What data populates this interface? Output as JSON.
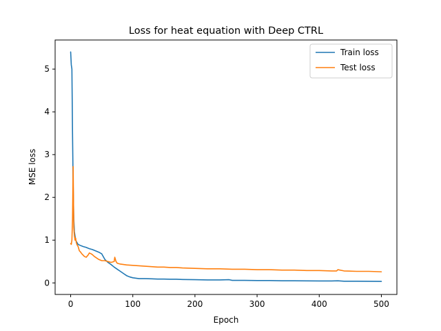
{
  "chart_data": {
    "type": "line",
    "title": "Loss for heat equation with Deep CTRL",
    "xlabel": "Epoch",
    "ylabel": "MSE loss",
    "xlim": [
      -25,
      525
    ],
    "ylim": [
      -0.27,
      5.68
    ],
    "xticks": [
      0,
      100,
      200,
      300,
      400,
      500
    ],
    "yticks": [
      0,
      1,
      2,
      3,
      4,
      5
    ],
    "grid": false,
    "legend_position": "top-right",
    "series": [
      {
        "name": "Train loss",
        "color": "#1f77b4",
        "x": [
          0,
          1,
          2,
          3,
          4,
          5,
          6,
          8,
          10,
          12,
          15,
          20,
          25,
          30,
          35,
          40,
          45,
          50,
          55,
          60,
          65,
          70,
          75,
          80,
          85,
          90,
          95,
          100,
          105,
          110,
          120,
          130,
          140,
          150,
          160,
          170,
          180,
          200,
          220,
          240,
          255,
          260,
          280,
          300,
          320,
          340,
          360,
          380,
          400,
          420,
          430,
          440,
          460,
          480,
          500
        ],
        "y": [
          5.4,
          5.1,
          5.0,
          3.5,
          2.3,
          1.5,
          1.2,
          1.0,
          0.95,
          0.9,
          0.88,
          0.85,
          0.83,
          0.8,
          0.78,
          0.75,
          0.72,
          0.68,
          0.55,
          0.48,
          0.43,
          0.37,
          0.32,
          0.27,
          0.22,
          0.17,
          0.14,
          0.12,
          0.11,
          0.1,
          0.1,
          0.095,
          0.09,
          0.09,
          0.085,
          0.085,
          0.08,
          0.075,
          0.07,
          0.07,
          0.075,
          0.06,
          0.06,
          0.055,
          0.055,
          0.05,
          0.05,
          0.048,
          0.045,
          0.045,
          0.05,
          0.04,
          0.04,
          0.038,
          0.035
        ]
      },
      {
        "name": "Test loss",
        "color": "#ff7f0e",
        "x": [
          0,
          1,
          2,
          3,
          4,
          5,
          6,
          7,
          8,
          9,
          10,
          12,
          14,
          16,
          18,
          20,
          22,
          25,
          28,
          30,
          33,
          35,
          38,
          40,
          45,
          50,
          55,
          60,
          65,
          70,
          71,
          72,
          73,
          75,
          80,
          85,
          90,
          100,
          110,
          120,
          130,
          140,
          150,
          160,
          170,
          180,
          200,
          220,
          240,
          260,
          280,
          300,
          320,
          340,
          360,
          380,
          400,
          420,
          428,
          430,
          440,
          460,
          480,
          500
        ],
        "y": [
          0.92,
          0.9,
          1.0,
          1.5,
          2.72,
          1.3,
          1.1,
          1.0,
          1.05,
          0.95,
          0.9,
          0.85,
          0.75,
          0.72,
          0.68,
          0.65,
          0.62,
          0.6,
          0.65,
          0.7,
          0.68,
          0.66,
          0.62,
          0.6,
          0.55,
          0.52,
          0.52,
          0.5,
          0.48,
          0.5,
          0.6,
          0.55,
          0.5,
          0.46,
          0.44,
          0.43,
          0.42,
          0.41,
          0.4,
          0.39,
          0.38,
          0.37,
          0.37,
          0.36,
          0.36,
          0.35,
          0.34,
          0.33,
          0.33,
          0.32,
          0.32,
          0.31,
          0.31,
          0.3,
          0.3,
          0.29,
          0.29,
          0.28,
          0.28,
          0.31,
          0.28,
          0.27,
          0.27,
          0.26
        ]
      }
    ]
  }
}
